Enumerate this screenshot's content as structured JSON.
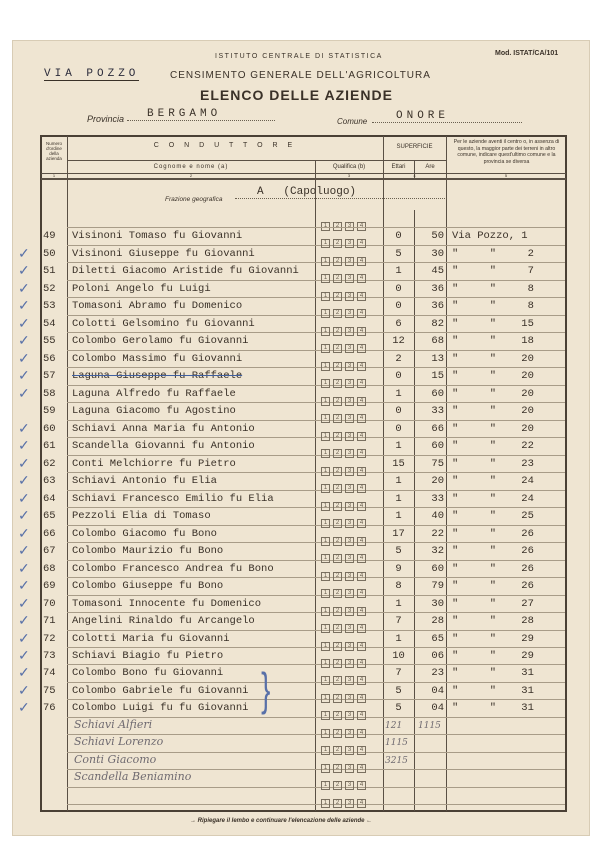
{
  "form": {
    "institute": "ISTITUTO CENTRALE DI STATISTICA",
    "model": "Mod. ISTAT/CA/101",
    "typed_stamp": "VIA POZZO",
    "census_title": "CENSIMENTO GENERALE DELL'AGRICOLTURA",
    "title": "ELENCO DELLE AZIENDE",
    "provincia_label": "Provincia",
    "provincia_value": "BERGAMO",
    "comune_label": "Comune",
    "comune_value": "ONORE",
    "frazione_label": "Frazione geografica",
    "frazione_value": "A   (Capoluogo)",
    "footer": "Ripiegare il lembo e continuare l'elencazione delle aziende"
  },
  "headers": {
    "col1": "Numero d'ordine della azienda",
    "conduttore": "C O N D U T T O R E",
    "cognome": "Cognome e nome (a)",
    "qualifica": "Qualifica (b)",
    "superficie": "SUPERFICIE",
    "ettari": "Ettari",
    "are": "Are",
    "col5": "Per le aziende aventi il centro o, in assenza di questo, la maggior parte dei terreni in altro comune, indicare quest'ultimo comune e la provincia se diversa",
    "n1": "1",
    "n2": "2",
    "n3": "3",
    "n4": "4",
    "n5": "5"
  },
  "qualifica_options": [
    "1",
    "2",
    "3",
    "4"
  ],
  "rows": [
    {
      "n": "49",
      "name": "Visinoni Tomaso fu Giovanni",
      "ettari": "0",
      "are": "50",
      "loc": "Via Pozzo, 1",
      "check": false
    },
    {
      "n": "50",
      "name": "Visinoni Giuseppe fu Giovanni",
      "ettari": "5",
      "are": "30",
      "loc": "\"     \"     2",
      "check": true
    },
    {
      "n": "51",
      "name": "Diletti Giacomo Aristide fu Giovanni",
      "ettari": "1",
      "are": "45",
      "loc": "\"     \"     7",
      "check": true
    },
    {
      "n": "52",
      "name": "Poloni Angelo fu Luigi",
      "ettari": "0",
      "are": "36",
      "loc": "\"     \"     8",
      "check": true
    },
    {
      "n": "53",
      "name": "Tomasoni Abramo  fu Domenico",
      "ettari": "0",
      "are": "36",
      "loc": "\"     \"     8",
      "check": true
    },
    {
      "n": "54",
      "name": "Colotti Gelsomino fu Giovanni",
      "ettari": "6",
      "are": "82",
      "loc": "\"     \"    15",
      "check": true
    },
    {
      "n": "55",
      "name": "Colombo Gerolamo fu Giovanni",
      "ettari": "12",
      "are": "68",
      "loc": "\"     \"    18",
      "check": true
    },
    {
      "n": "56",
      "name": "Colombo Massimo fu Giovanni",
      "ettari": "2",
      "are": "13",
      "loc": "\"     \"    20",
      "check": true
    },
    {
      "n": "57",
      "name": "Laguna Giuseppe  fu Raffaele",
      "ettari": "0",
      "are": "15",
      "loc": "\"     \"    20",
      "check": true,
      "struck": true
    },
    {
      "n": "58",
      "name": "Laguna Alfredo fu Raffaele",
      "ettari": "1",
      "are": "60",
      "loc": "\"     \"    20",
      "check": true
    },
    {
      "n": "59",
      "name": "Laguna Giacomo fu Agostino",
      "ettari": "0",
      "are": "33",
      "loc": "\"     \"    20",
      "check": false
    },
    {
      "n": "60",
      "name": "Schiavi Anna Maria fu Antonio",
      "ettari": "0",
      "are": "66",
      "loc": "\"     \"    20",
      "check": true
    },
    {
      "n": "61",
      "name": "Scandella Giovanni fu Antonio",
      "ettari": "1",
      "are": "60",
      "loc": "\"     \"    22",
      "check": true
    },
    {
      "n": "62",
      "name": "Conti Melchiorre fu Pietro",
      "ettari": "15",
      "are": "75",
      "loc": "\"     \"    23",
      "check": true
    },
    {
      "n": "63",
      "name": "Schiavi Antonio fu Elia",
      "ettari": "1",
      "are": "20",
      "loc": "\"     \"    24",
      "check": true
    },
    {
      "n": "64",
      "name": "Schiavi Francesco Emilio fu Elia",
      "ettari": "1",
      "are": "33",
      "loc": "\"     \"    24",
      "check": true
    },
    {
      "n": "65",
      "name": "Pezzoli Elia di Tomaso",
      "ettari": "1",
      "are": "40",
      "loc": "\"     \"    25",
      "check": true
    },
    {
      "n": "66",
      "name": "Colombo Giacomo fu Bono",
      "ettari": "17",
      "are": "22",
      "loc": "\"     \"    26",
      "check": true
    },
    {
      "n": "67",
      "name": "Colombo Maurizio fu Bono",
      "ettari": "5",
      "are": "32",
      "loc": "\"     \"    26",
      "check": true
    },
    {
      "n": "68",
      "name": "Colombo Francesco Andrea fu Bono",
      "ettari": "9",
      "are": "60",
      "loc": "\"     \"    26",
      "check": true
    },
    {
      "n": "69",
      "name": "Colombo Giuseppe fu Bono",
      "ettari": "8",
      "are": "79",
      "loc": "\"     \"    26",
      "check": true
    },
    {
      "n": "70",
      "name": "Tomasoni Innocente fu Domenico",
      "ettari": "1",
      "are": "30",
      "loc": "\"     \"    27",
      "check": true
    },
    {
      "n": "71",
      "name": "Angelini Rinaldo fu Arcangelo",
      "ettari": "7",
      "are": "28",
      "loc": "\"     \"    28",
      "check": true
    },
    {
      "n": "72",
      "name": "Colotti Maria fu Giovanni",
      "ettari": "1",
      "are": "65",
      "loc": "\"     \"    29",
      "check": true
    },
    {
      "n": "73",
      "name": "Schiavi Biagio fu Pietro",
      "ettari": "10",
      "are": "06",
      "loc": "\"     \"    29",
      "check": true
    },
    {
      "n": "74",
      "name": "Colombo Bono fu Giovanni",
      "ettari": "7",
      "are": "23",
      "loc": "\"     \"    31",
      "check": true
    },
    {
      "n": "75",
      "name": "Colombo Gabriele fu Giovanni",
      "ettari": "5",
      "are": "04",
      "loc": "\"     \"    31",
      "check": true
    },
    {
      "n": "76",
      "name": "Colombo Luigi fu fu Giovanni",
      "ettari": "5",
      "are": "04",
      "loc": "\"     \"    31",
      "check": true
    }
  ],
  "handwritten_rows": [
    {
      "name": "Schiavi Alfieri",
      "ettari": "121",
      "are": "1115"
    },
    {
      "name": "Schiavi Lorenzo",
      "ettari": "1115",
      "are": ""
    },
    {
      "name": "Conti Giacomo",
      "ettari": "3215",
      "are": ""
    },
    {
      "name": "Scandella Beniamino",
      "ettari": "",
      "are": ""
    },
    {
      "name": "",
      "ettari": "",
      "are": ""
    }
  ],
  "check_glyph": "✓"
}
